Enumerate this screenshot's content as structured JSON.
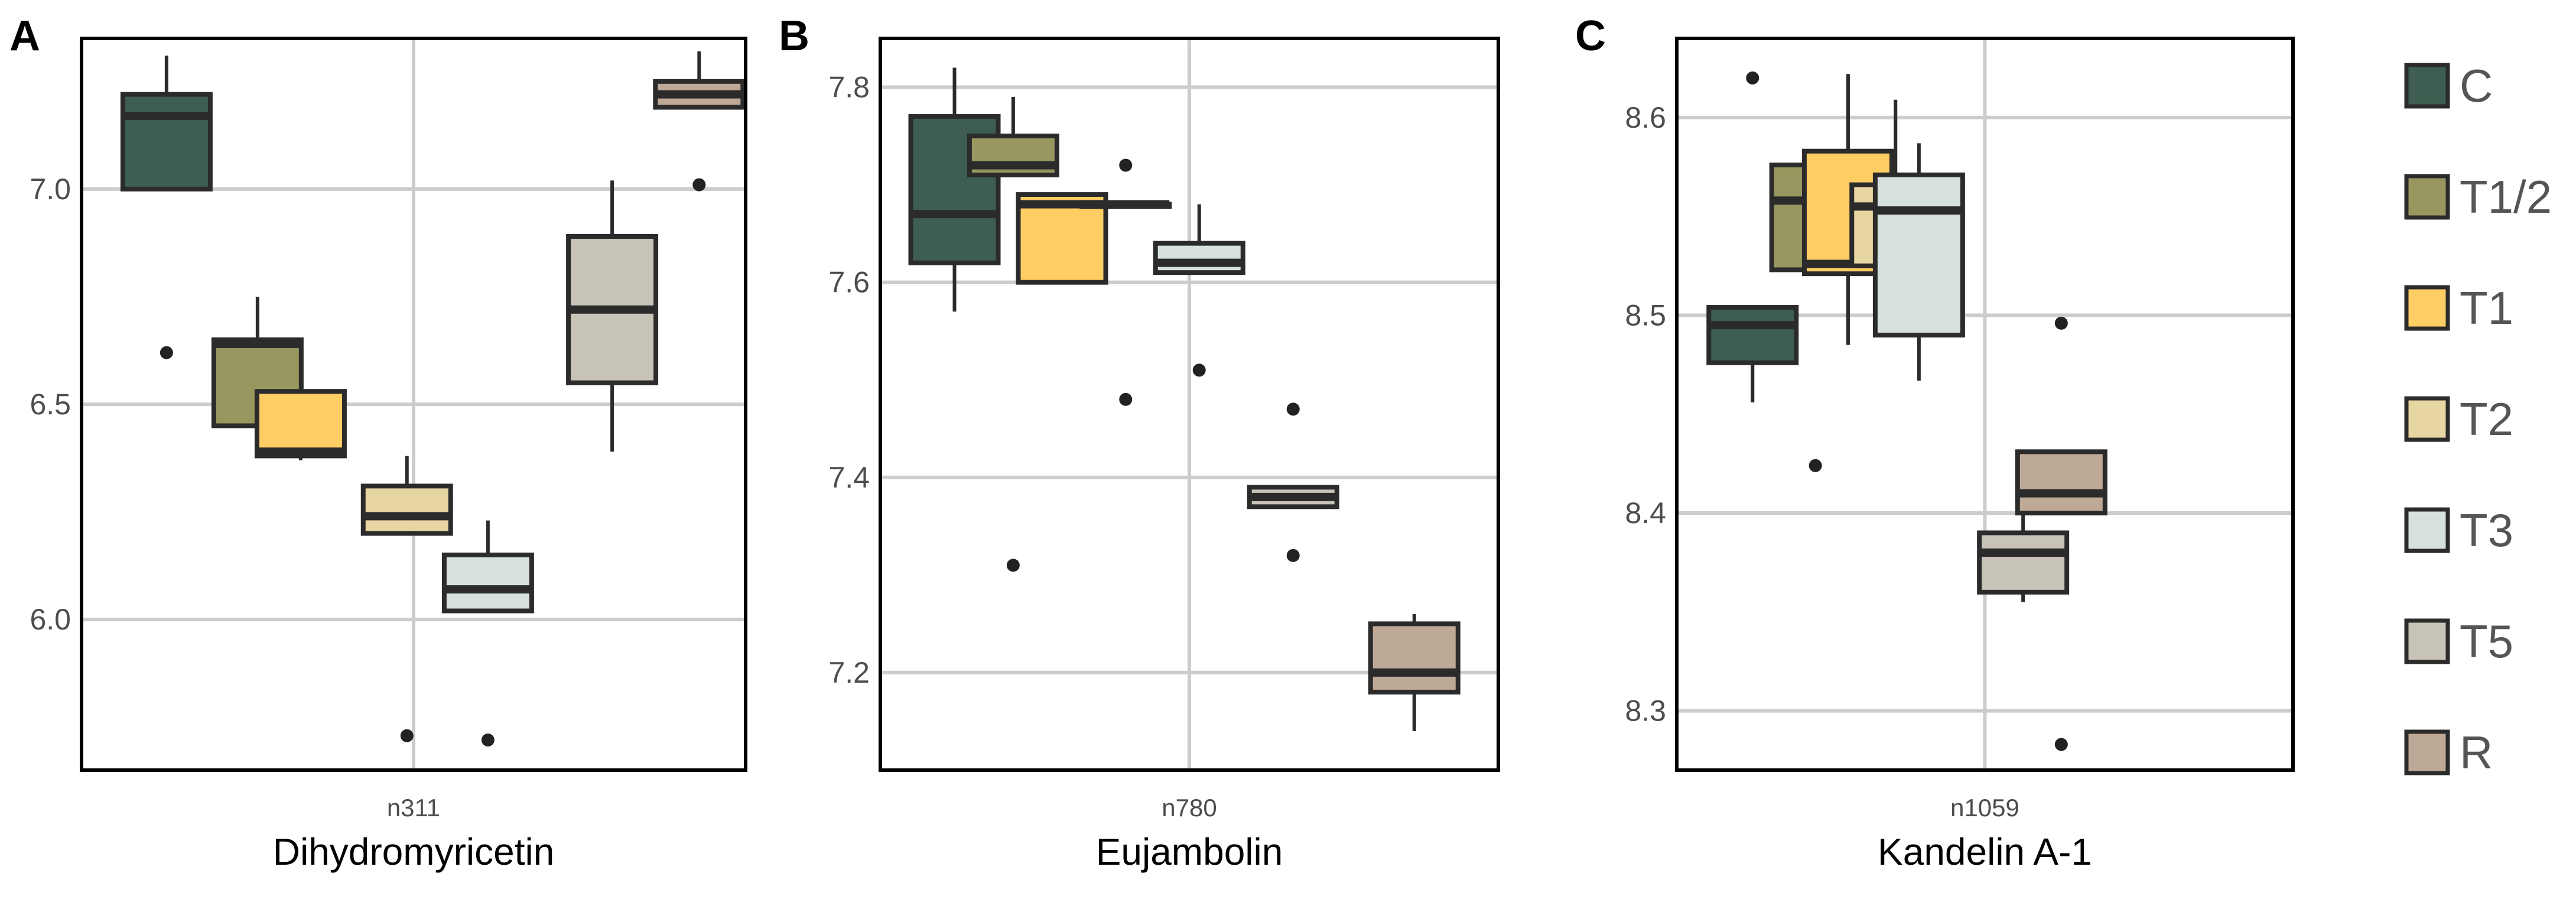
{
  "legend": {
    "items": [
      {
        "label": "C",
        "color": "#3d5e50"
      },
      {
        "label": "T1/2",
        "color": "#98975f"
      },
      {
        "label": "T1",
        "color": "#fece65"
      },
      {
        "label": "T2",
        "color": "#e7d6a1"
      },
      {
        "label": "T3",
        "color": "#d6e1dd"
      },
      {
        "label": "T5",
        "color": "#c8c3b7"
      },
      {
        "label": "R",
        "color": "#bea896"
      }
    ]
  },
  "chart_data": [
    {
      "type": "box",
      "panel": "A",
      "xtick": "n311",
      "xlabel": "Dihydromyricetin",
      "ylim": [
        5.65,
        7.35
      ],
      "yticks": [
        6.0,
        6.5,
        7.0
      ],
      "ytick_labels": [
        "6.0",
        "6.5",
        "7.0"
      ],
      "grid": true,
      "series": [
        {
          "name": "C",
          "whisker_low": 7.0,
          "q1": 7.0,
          "median": 7.17,
          "q3": 7.22,
          "whisker_high": 7.31,
          "outliers": [
            6.62
          ]
        },
        {
          "name": "T1/2",
          "whisker_low": 6.4,
          "q1": 6.45,
          "median": 6.64,
          "q3": 6.65,
          "whisker_high": 6.75,
          "outliers": []
        },
        {
          "name": "T1",
          "whisker_low": 6.37,
          "q1": 6.38,
          "median": 6.39,
          "q3": 6.53,
          "whisker_high": 6.63,
          "outliers": []
        },
        {
          "name": "T2",
          "whisker_low": 6.2,
          "q1": 6.2,
          "median": 6.24,
          "q3": 6.31,
          "whisker_high": 6.38,
          "outliers": [
            5.73
          ]
        },
        {
          "name": "T3",
          "whisker_low": 6.02,
          "q1": 6.02,
          "median": 6.07,
          "q3": 6.15,
          "whisker_high": 6.23,
          "outliers": [
            5.72
          ]
        },
        {
          "name": "T5",
          "whisker_low": 6.39,
          "q1": 6.55,
          "median": 6.72,
          "q3": 6.89,
          "whisker_high": 7.02,
          "outliers": []
        },
        {
          "name": "R",
          "whisker_low": 7.19,
          "q1": 7.19,
          "median": 7.22,
          "q3": 7.25,
          "whisker_high": 7.32,
          "outliers": [
            7.01
          ]
        }
      ]
    },
    {
      "type": "box",
      "panel": "B",
      "xtick": "n780",
      "xlabel": "Eujambolin",
      "ylim": [
        7.1,
        7.85
      ],
      "yticks": [
        7.2,
        7.4,
        7.6,
        7.8
      ],
      "ytick_labels": [
        "7.2",
        "7.4",
        "7.6",
        "7.8"
      ],
      "grid": true,
      "series": [
        {
          "name": "C",
          "whisker_low": 7.57,
          "q1": 7.62,
          "median": 7.67,
          "q3": 7.77,
          "whisker_high": 7.82,
          "outliers": []
        },
        {
          "name": "T1/2",
          "whisker_low": 7.71,
          "q1": 7.71,
          "median": 7.72,
          "q3": 7.75,
          "whisker_high": 7.79,
          "outliers": [
            7.31
          ]
        },
        {
          "name": "T1",
          "whisker_low": 7.6,
          "q1": 7.6,
          "median": 7.68,
          "q3": 7.69,
          "whisker_high": 7.69,
          "outliers": []
        },
        {
          "name": "T2",
          "whisker_low": 7.68,
          "q1": 7.68,
          "median": 7.68,
          "q3": 7.68,
          "whisker_high": 7.68,
          "outliers": [
            7.72,
            7.48
          ]
        },
        {
          "name": "T3",
          "whisker_low": 7.61,
          "q1": 7.61,
          "median": 7.62,
          "q3": 7.64,
          "whisker_high": 7.68,
          "outliers": [
            7.51
          ]
        },
        {
          "name": "T5",
          "whisker_low": 7.37,
          "q1": 7.37,
          "median": 7.38,
          "q3": 7.39,
          "whisker_high": 7.39,
          "outliers": [
            7.47,
            7.32
          ]
        },
        {
          "name": "R",
          "whisker_low": 7.14,
          "q1": 7.18,
          "median": 7.2,
          "q3": 7.25,
          "whisker_high": 7.26,
          "outliers": []
        }
      ]
    },
    {
      "type": "box",
      "panel": "C",
      "xtick": "n1059",
      "xlabel": "Kandelin A-1",
      "ylim": [
        8.27,
        8.64
      ],
      "yticks": [
        8.3,
        8.4,
        8.5,
        8.6
      ],
      "ytick_labels": [
        "8.3",
        "8.4",
        "8.5",
        "8.6"
      ],
      "grid": true,
      "series": [
        {
          "name": "C",
          "whisker_low": 8.456,
          "q1": 8.476,
          "median": 8.495,
          "q3": 8.504,
          "whisker_high": 8.504,
          "outliers": [
            8.62
          ]
        },
        {
          "name": "T1/2",
          "whisker_low": 8.523,
          "q1": 8.523,
          "median": 8.558,
          "q3": 8.576,
          "whisker_high": 8.584,
          "outliers": [
            8.424
          ]
        },
        {
          "name": "T1",
          "whisker_low": 8.485,
          "q1": 8.521,
          "median": 8.526,
          "q3": 8.583,
          "whisker_high": 8.622,
          "outliers": []
        },
        {
          "name": "T2",
          "whisker_low": 8.525,
          "q1": 8.525,
          "median": 8.555,
          "q3": 8.566,
          "whisker_high": 8.609,
          "outliers": []
        },
        {
          "name": "T3",
          "whisker_low": 8.467,
          "q1": 8.49,
          "median": 8.553,
          "q3": 8.571,
          "whisker_high": 8.587,
          "outliers": []
        },
        {
          "name": "T5",
          "whisker_low": 8.355,
          "q1": 8.36,
          "median": 8.38,
          "q3": 8.39,
          "whisker_high": 8.42,
          "outliers": []
        },
        {
          "name": "R",
          "whisker_low": 8.4,
          "q1": 8.4,
          "median": 8.41,
          "q3": 8.431,
          "whisker_high": 8.431,
          "outliers": [
            8.496,
            8.283
          ]
        }
      ]
    }
  ]
}
